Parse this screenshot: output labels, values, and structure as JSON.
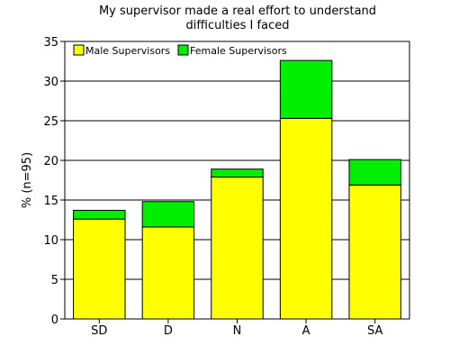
{
  "chart_data": {
    "type": "bar",
    "stacked": true,
    "title": "My supervisor made a real effort to understand difficulties I faced",
    "title_lines": [
      "My supervisor made a real effort to understand",
      "difficulties I faced"
    ],
    "xlabel": "",
    "ylabel": "% (n=95)",
    "categories": [
      "SD",
      "D",
      "N",
      "A",
      "SA"
    ],
    "series": [
      {
        "name": "Male Supervisors",
        "color": "#ffff00",
        "values": [
          12.6,
          11.6,
          17.9,
          25.3,
          16.9
        ]
      },
      {
        "name": "Female Supervisors",
        "color": "#00ee00",
        "values": [
          1.1,
          3.2,
          1.0,
          7.3,
          3.2
        ]
      }
    ],
    "ylim": [
      0,
      35
    ],
    "yticks": [
      0,
      5,
      10,
      15,
      20,
      25,
      30,
      35
    ],
    "grid": true,
    "legend_position": "top-left"
  }
}
